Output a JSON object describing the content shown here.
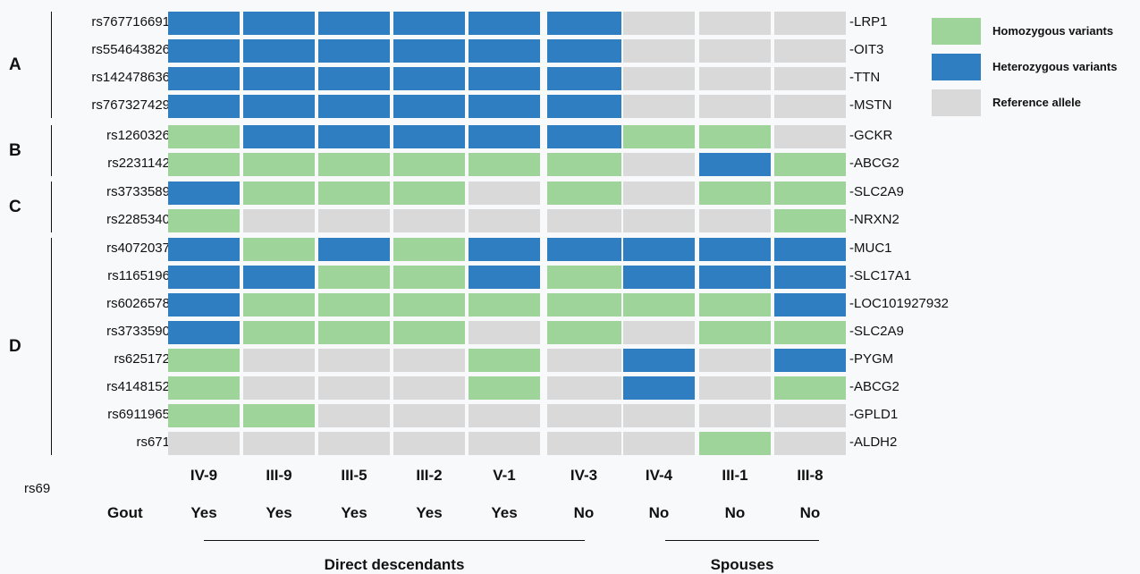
{
  "chart_data": {
    "type": "heatmap",
    "legend": [
      {
        "label": "Homozygous variants",
        "color": "#9ed49a"
      },
      {
        "label": "Heterozygous variants",
        "color": "#2f7ec1"
      },
      {
        "label": "Reference allele",
        "color": "#d9d9d9"
      }
    ],
    "groups": [
      {
        "label": "A",
        "start": 0,
        "end": 3
      },
      {
        "label": "B",
        "start": 4,
        "end": 5
      },
      {
        "label": "C",
        "start": 6,
        "end": 7
      },
      {
        "label": "D",
        "start": 8,
        "end": 15
      }
    ],
    "rows": [
      {
        "snp": "rs767716691",
        "gene": "LRP1",
        "values": [
          "Het",
          "Het",
          "Het",
          "Het",
          "Het",
          "Het",
          "Ref",
          "Ref",
          "Ref"
        ]
      },
      {
        "snp": "rs554643826",
        "gene": "OIT3",
        "values": [
          "Het",
          "Het",
          "Het",
          "Het",
          "Het",
          "Het",
          "Ref",
          "Ref",
          "Ref"
        ]
      },
      {
        "snp": "rs142478636",
        "gene": "TTN",
        "values": [
          "Het",
          "Het",
          "Het",
          "Het",
          "Het",
          "Het",
          "Ref",
          "Ref",
          "Ref"
        ]
      },
      {
        "snp": "rs767327429",
        "gene": "MSTN",
        "values": [
          "Het",
          "Het",
          "Het",
          "Het",
          "Het",
          "Het",
          "Ref",
          "Ref",
          "Ref"
        ]
      },
      {
        "snp": "rs1260326",
        "gene": "GCKR",
        "values": [
          "Hom",
          "Het",
          "Het",
          "Het",
          "Het",
          "Het",
          "Hom",
          "Hom",
          "Ref"
        ]
      },
      {
        "snp": "rs2231142",
        "gene": "ABCG2",
        "values": [
          "Hom",
          "Hom",
          "Hom",
          "Hom",
          "Hom",
          "Hom",
          "Ref",
          "Het",
          "Hom"
        ]
      },
      {
        "snp": "rs3733589",
        "gene": "SLC2A9",
        "values": [
          "Het",
          "Hom",
          "Hom",
          "Hom",
          "Ref",
          "Hom",
          "Ref",
          "Hom",
          "Hom"
        ]
      },
      {
        "snp": "rs2285340",
        "gene": "NRXN2",
        "values": [
          "Hom",
          "Ref",
          "Ref",
          "Ref",
          "Ref",
          "Ref",
          "Ref",
          "Ref",
          "Hom"
        ]
      },
      {
        "snp": "rs4072037",
        "gene": "MUC1",
        "values": [
          "Het",
          "Hom",
          "Het",
          "Hom",
          "Het",
          "Het",
          "Het",
          "Het",
          "Het"
        ]
      },
      {
        "snp": "rs1165196",
        "gene": "SLC17A1",
        "values": [
          "Het",
          "Het",
          "Hom",
          "Hom",
          "Het",
          "Hom",
          "Het",
          "Het",
          "Het"
        ]
      },
      {
        "snp": "rs6026578",
        "gene": "LOC101927932",
        "values": [
          "Het",
          "Hom",
          "Hom",
          "Hom",
          "Hom",
          "Hom",
          "Hom",
          "Hom",
          "Het"
        ]
      },
      {
        "snp": "rs3733590",
        "gene": "SLC2A9",
        "values": [
          "Het",
          "Hom",
          "Hom",
          "Hom",
          "Ref",
          "Hom",
          "Ref",
          "Hom",
          "Hom"
        ]
      },
      {
        "snp": "rs625172",
        "gene": "PYGM",
        "values": [
          "Hom",
          "Ref",
          "Ref",
          "Ref",
          "Hom",
          "Ref",
          "Het",
          "Ref",
          "Het"
        ]
      },
      {
        "snp": "rs4148152",
        "gene": "ABCG2",
        "values": [
          "Hom",
          "Ref",
          "Ref",
          "Ref",
          "Hom",
          "Ref",
          "Het",
          "Ref",
          "Hom"
        ]
      },
      {
        "snp": "rs6911965",
        "gene": "GPLD1",
        "values": [
          "Hom",
          "Hom",
          "Ref",
          "Ref",
          "Ref",
          "Ref",
          "Ref",
          "Ref",
          "Ref"
        ]
      },
      {
        "snp": "rs671",
        "gene": "ALDH2",
        "values": [
          "Ref",
          "Ref",
          "Ref",
          "Ref",
          "Ref",
          "Ref",
          "Ref",
          "Hom",
          "Ref"
        ]
      }
    ],
    "columns": [
      {
        "id": "IV-9",
        "gout": "Yes"
      },
      {
        "id": "III-9",
        "gout": "Yes"
      },
      {
        "id": "III-5",
        "gout": "Yes"
      },
      {
        "id": "III-2",
        "gout": "Yes"
      },
      {
        "id": "V-1",
        "gout": "Yes"
      },
      {
        "id": "IV-3",
        "gout": "No"
      },
      {
        "id": "IV-4",
        "gout": "No"
      },
      {
        "id": "III-1",
        "gout": "No"
      },
      {
        "id": "III-8",
        "gout": "No"
      }
    ],
    "gout_row_label": "Gout",
    "stray_label": "rs69",
    "sections": [
      {
        "label": "Direct descendants",
        "from": 0,
        "to": 5
      },
      {
        "label": "Spouses",
        "from": 6,
        "to": 8
      }
    ]
  }
}
